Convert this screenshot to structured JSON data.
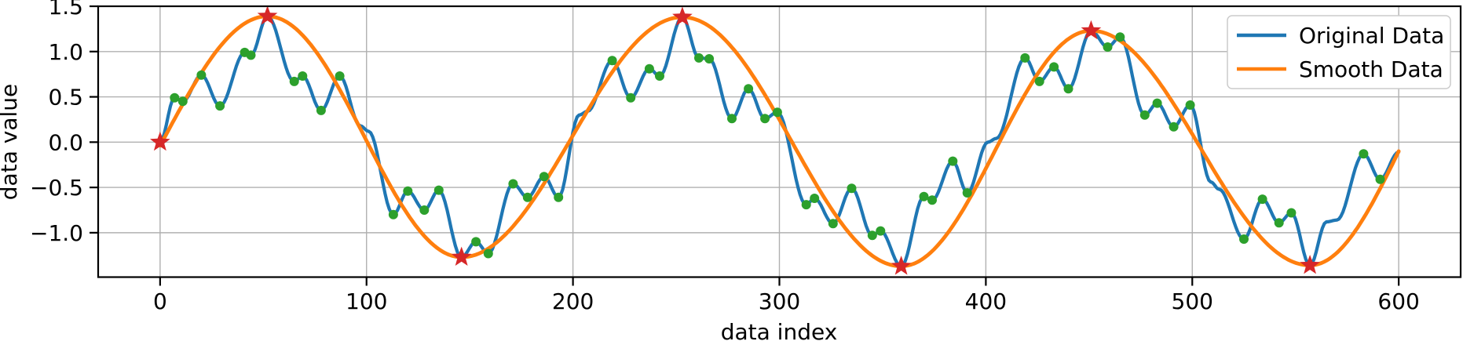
{
  "figure": {
    "xlabel": "data index",
    "ylabel": "data value",
    "background": "#ffffff"
  },
  "legend": {
    "position": "upper right",
    "entries": [
      {
        "label": "Original Data",
        "color": "#1f77b4"
      },
      {
        "label": "Smooth Data",
        "color": "#ff7f0e"
      }
    ]
  },
  "axes": {
    "x_tick_labels": [
      "0",
      "100",
      "200",
      "300",
      "400",
      "500",
      "600"
    ],
    "y_tick_labels": [
      "1.5",
      "1.0",
      "0.5",
      "0.0",
      "−0.5",
      "−1.0"
    ]
  },
  "chart_data": {
    "type": "line",
    "title": "",
    "xlabel": "data index",
    "ylabel": "data value",
    "xlim": [
      -30,
      630
    ],
    "ylim": [
      -1.49,
      1.5
    ],
    "xticks": [
      0,
      100,
      200,
      300,
      400,
      500,
      600
    ],
    "yticks": [
      1.5,
      1.0,
      0.5,
      0.0,
      -0.5,
      -1.0
    ],
    "grid": true,
    "grid_color": "#b0b0b0",
    "legend_position": "upper right",
    "series": [
      {
        "name": "Original Data",
        "color": "#1f77b4",
        "line_width": 4.2,
        "interpolation": "cosine",
        "points": [
          [
            0,
            0.0
          ],
          [
            7,
            0.49
          ],
          [
            11,
            0.45
          ],
          [
            20,
            0.74
          ],
          [
            29,
            0.4
          ],
          [
            41,
            0.99
          ],
          [
            44,
            0.96
          ],
          [
            52,
            1.39
          ],
          [
            65,
            0.67
          ],
          [
            69,
            0.73
          ],
          [
            78,
            0.35
          ],
          [
            87,
            0.73
          ],
          [
            97,
            0.18
          ],
          [
            101,
            0.12
          ],
          [
            113,
            -0.8
          ],
          [
            120,
            -0.54
          ],
          [
            128,
            -0.75
          ],
          [
            135,
            -0.53
          ],
          [
            146,
            -1.27
          ],
          [
            153,
            -1.1
          ],
          [
            159,
            -1.23
          ],
          [
            171,
            -0.46
          ],
          [
            178,
            -0.61
          ],
          [
            186,
            -0.38
          ],
          [
            193,
            -0.61
          ],
          [
            203,
            0.3
          ],
          [
            207,
            0.34
          ],
          [
            219,
            0.9
          ],
          [
            228,
            0.49
          ],
          [
            237,
            0.81
          ],
          [
            242,
            0.73
          ],
          [
            253,
            1.38
          ],
          [
            261,
            0.93
          ],
          [
            266,
            0.92
          ],
          [
            277,
            0.26
          ],
          [
            285,
            0.59
          ],
          [
            293,
            0.26
          ],
          [
            299,
            0.33
          ],
          [
            313,
            -0.69
          ],
          [
            317,
            -0.62
          ],
          [
            326,
            -0.9
          ],
          [
            335,
            -0.51
          ],
          [
            345,
            -1.03
          ],
          [
            349,
            -0.98
          ],
          [
            359,
            -1.37
          ],
          [
            370,
            -0.6
          ],
          [
            374,
            -0.64
          ],
          [
            384,
            -0.21
          ],
          [
            391,
            -0.56
          ],
          [
            401,
            0.0
          ],
          [
            405,
            0.04
          ],
          [
            419,
            0.93
          ],
          [
            426,
            0.67
          ],
          [
            433,
            0.83
          ],
          [
            440,
            0.59
          ],
          [
            451,
            1.23
          ],
          [
            459,
            1.05
          ],
          [
            465,
            1.16
          ],
          [
            477,
            0.3
          ],
          [
            483,
            0.43
          ],
          [
            491,
            0.17
          ],
          [
            499,
            0.41
          ],
          [
            509,
            -0.44
          ],
          [
            513,
            -0.52
          ],
          [
            525,
            -1.07
          ],
          [
            534,
            -0.63
          ],
          [
            542,
            -0.89
          ],
          [
            548,
            -0.78
          ],
          [
            557,
            -1.36
          ],
          [
            565,
            -0.88
          ],
          [
            570,
            -0.86
          ],
          [
            583,
            -0.13
          ],
          [
            591,
            -0.41
          ],
          [
            600,
            -0.11
          ]
        ]
      },
      {
        "name": "Smooth Data",
        "color": "#ff7f0e",
        "line_width": 4.8,
        "interpolation": "cosine",
        "clip_x": [
          0,
          600
        ],
        "points": [
          [
            -48,
            -1.3
          ],
          [
            52,
            1.39
          ],
          [
            146,
            -1.27
          ],
          [
            253,
            1.38
          ],
          [
            359,
            -1.37
          ],
          [
            451,
            1.23
          ],
          [
            557,
            -1.36
          ],
          [
            646,
            1.3
          ]
        ]
      }
    ],
    "markers": [
      {
        "name": "original-extrema",
        "shape": "circle",
        "color": "#2ca02c",
        "radius": 6,
        "points": [
          [
            7,
            0.49
          ],
          [
            11,
            0.45
          ],
          [
            20,
            0.74
          ],
          [
            29,
            0.4
          ],
          [
            41,
            0.99
          ],
          [
            44,
            0.96
          ],
          [
            65,
            0.67
          ],
          [
            69,
            0.73
          ],
          [
            78,
            0.35
          ],
          [
            87,
            0.73
          ],
          [
            113,
            -0.8
          ],
          [
            120,
            -0.54
          ],
          [
            128,
            -0.75
          ],
          [
            135,
            -0.53
          ],
          [
            153,
            -1.1
          ],
          [
            159,
            -1.23
          ],
          [
            171,
            -0.46
          ],
          [
            178,
            -0.61
          ],
          [
            186,
            -0.38
          ],
          [
            193,
            -0.61
          ],
          [
            219,
            0.9
          ],
          [
            228,
            0.49
          ],
          [
            237,
            0.81
          ],
          [
            242,
            0.73
          ],
          [
            261,
            0.93
          ],
          [
            266,
            0.92
          ],
          [
            277,
            0.26
          ],
          [
            285,
            0.59
          ],
          [
            293,
            0.26
          ],
          [
            299,
            0.33
          ],
          [
            313,
            -0.69
          ],
          [
            317,
            -0.62
          ],
          [
            326,
            -0.9
          ],
          [
            335,
            -0.51
          ],
          [
            345,
            -1.03
          ],
          [
            349,
            -0.98
          ],
          [
            370,
            -0.6
          ],
          [
            374,
            -0.64
          ],
          [
            384,
            -0.21
          ],
          [
            391,
            -0.56
          ],
          [
            419,
            0.93
          ],
          [
            426,
            0.67
          ],
          [
            433,
            0.83
          ],
          [
            440,
            0.59
          ],
          [
            459,
            1.05
          ],
          [
            465,
            1.16
          ],
          [
            477,
            0.3
          ],
          [
            483,
            0.43
          ],
          [
            491,
            0.17
          ],
          [
            499,
            0.41
          ],
          [
            525,
            -1.07
          ],
          [
            534,
            -0.63
          ],
          [
            542,
            -0.89
          ],
          [
            548,
            -0.78
          ],
          [
            583,
            -0.13
          ],
          [
            591,
            -0.41
          ]
        ]
      },
      {
        "name": "smooth-extrema",
        "shape": "star",
        "color": "#d62728",
        "outer_radius": 13.5,
        "inner_radius": 5.6,
        "points": [
          [
            0,
            0.0
          ],
          [
            52,
            1.39
          ],
          [
            146,
            -1.27
          ],
          [
            253,
            1.38
          ],
          [
            359,
            -1.37
          ],
          [
            451,
            1.23
          ],
          [
            557,
            -1.36
          ]
        ]
      }
    ]
  }
}
